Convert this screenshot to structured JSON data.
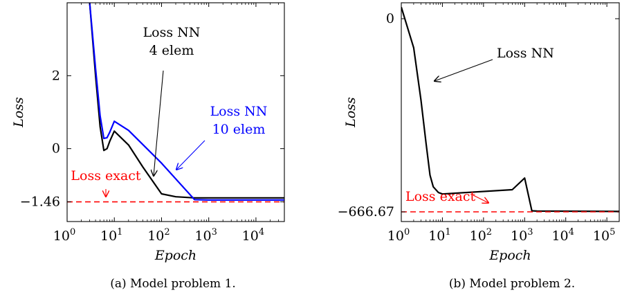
{
  "chart_data": [
    {
      "type": "line",
      "caption": "(a) Model problem 1.",
      "xlabel": "Epoch",
      "ylabel": "Loss",
      "xscale": "log",
      "xlim": [
        1,
        40000
      ],
      "ylim": [
        -2.0,
        4.0
      ],
      "xticks": [
        {
          "value": 1,
          "base": "10",
          "exp": "0"
        },
        {
          "value": 10,
          "base": "10",
          "exp": "1"
        },
        {
          "value": 100,
          "base": "10",
          "exp": "2"
        },
        {
          "value": 1000,
          "base": "10",
          "exp": "3"
        },
        {
          "value": 10000,
          "base": "10",
          "exp": "4"
        }
      ],
      "yticks": [
        {
          "value": 2,
          "label": "2"
        },
        {
          "value": 0,
          "label": "0"
        },
        {
          "value": -1.46,
          "label": "−1.46"
        }
      ],
      "series": [
        {
          "name": "Loss NN 4 elem",
          "color": "#000000",
          "x": [
            3,
            4,
            5,
            6,
            7,
            8,
            10,
            20,
            40,
            100,
            200,
            500,
            1000,
            40000
          ],
          "y": [
            4.0,
            2.0,
            0.6,
            -0.05,
            0.0,
            0.2,
            0.48,
            0.1,
            -0.5,
            -1.24,
            -1.32,
            -1.35,
            -1.35,
            -1.35
          ]
        },
        {
          "name": "Loss NN 10 elem",
          "color": "#0000ff",
          "x": [
            3,
            4,
            5,
            6,
            7,
            8,
            10,
            20,
            100,
            500,
            1000,
            40000
          ],
          "y": [
            4.0,
            2.2,
            0.9,
            0.28,
            0.3,
            0.45,
            0.75,
            0.5,
            -0.4,
            -1.4,
            -1.41,
            -1.41
          ]
        },
        {
          "name": "Loss exact",
          "color": "#ff0000",
          "dashed": true,
          "x": [
            1,
            40000
          ],
          "y": [
            -1.46,
            -1.46
          ]
        }
      ],
      "annotations": [
        {
          "lines": [
            "Loss NN",
            "4 elem"
          ],
          "color": "#000000"
        },
        {
          "lines": [
            "Loss NN",
            "10 elem"
          ],
          "color": "#0000ff"
        },
        {
          "lines": [
            "Loss exact"
          ],
          "color": "#ff0000"
        }
      ]
    },
    {
      "type": "line",
      "caption": "(b) Model problem 2.",
      "xlabel": "Epoch",
      "ylabel": "Loss",
      "xscale": "log",
      "xlim": [
        1,
        200000
      ],
      "ylim": [
        -700,
        55
      ],
      "xticks": [
        {
          "value": 1,
          "base": "10",
          "exp": "0"
        },
        {
          "value": 10,
          "base": "10",
          "exp": "1"
        },
        {
          "value": 100,
          "base": "10",
          "exp": "2"
        },
        {
          "value": 1000,
          "base": "10",
          "exp": "3"
        },
        {
          "value": 10000,
          "base": "10",
          "exp": "4"
        },
        {
          "value": 100000,
          "base": "10",
          "exp": "5"
        }
      ],
      "yticks": [
        {
          "value": 0,
          "label": "0"
        },
        {
          "value": -666.67,
          "label": "−666.67"
        }
      ],
      "series": [
        {
          "name": "Loss NN",
          "color": "#000000",
          "x": [
            1,
            2,
            3,
            4,
            5,
            6,
            8,
            10,
            500,
            1000,
            1500,
            2000,
            200000
          ],
          "y": [
            40,
            -100,
            -280,
            -430,
            -540,
            -580,
            -600,
            -605,
            -590,
            -550,
            -663,
            -664,
            -665
          ]
        },
        {
          "name": "Loss exact",
          "color": "#ff0000",
          "dashed": true,
          "x": [
            1,
            200000
          ],
          "y": [
            -666.67,
            -666.67
          ]
        }
      ],
      "annotations": [
        {
          "lines": [
            "Loss NN"
          ],
          "color": "#000000"
        },
        {
          "lines": [
            "Loss exact"
          ],
          "color": "#ff0000"
        }
      ]
    }
  ]
}
